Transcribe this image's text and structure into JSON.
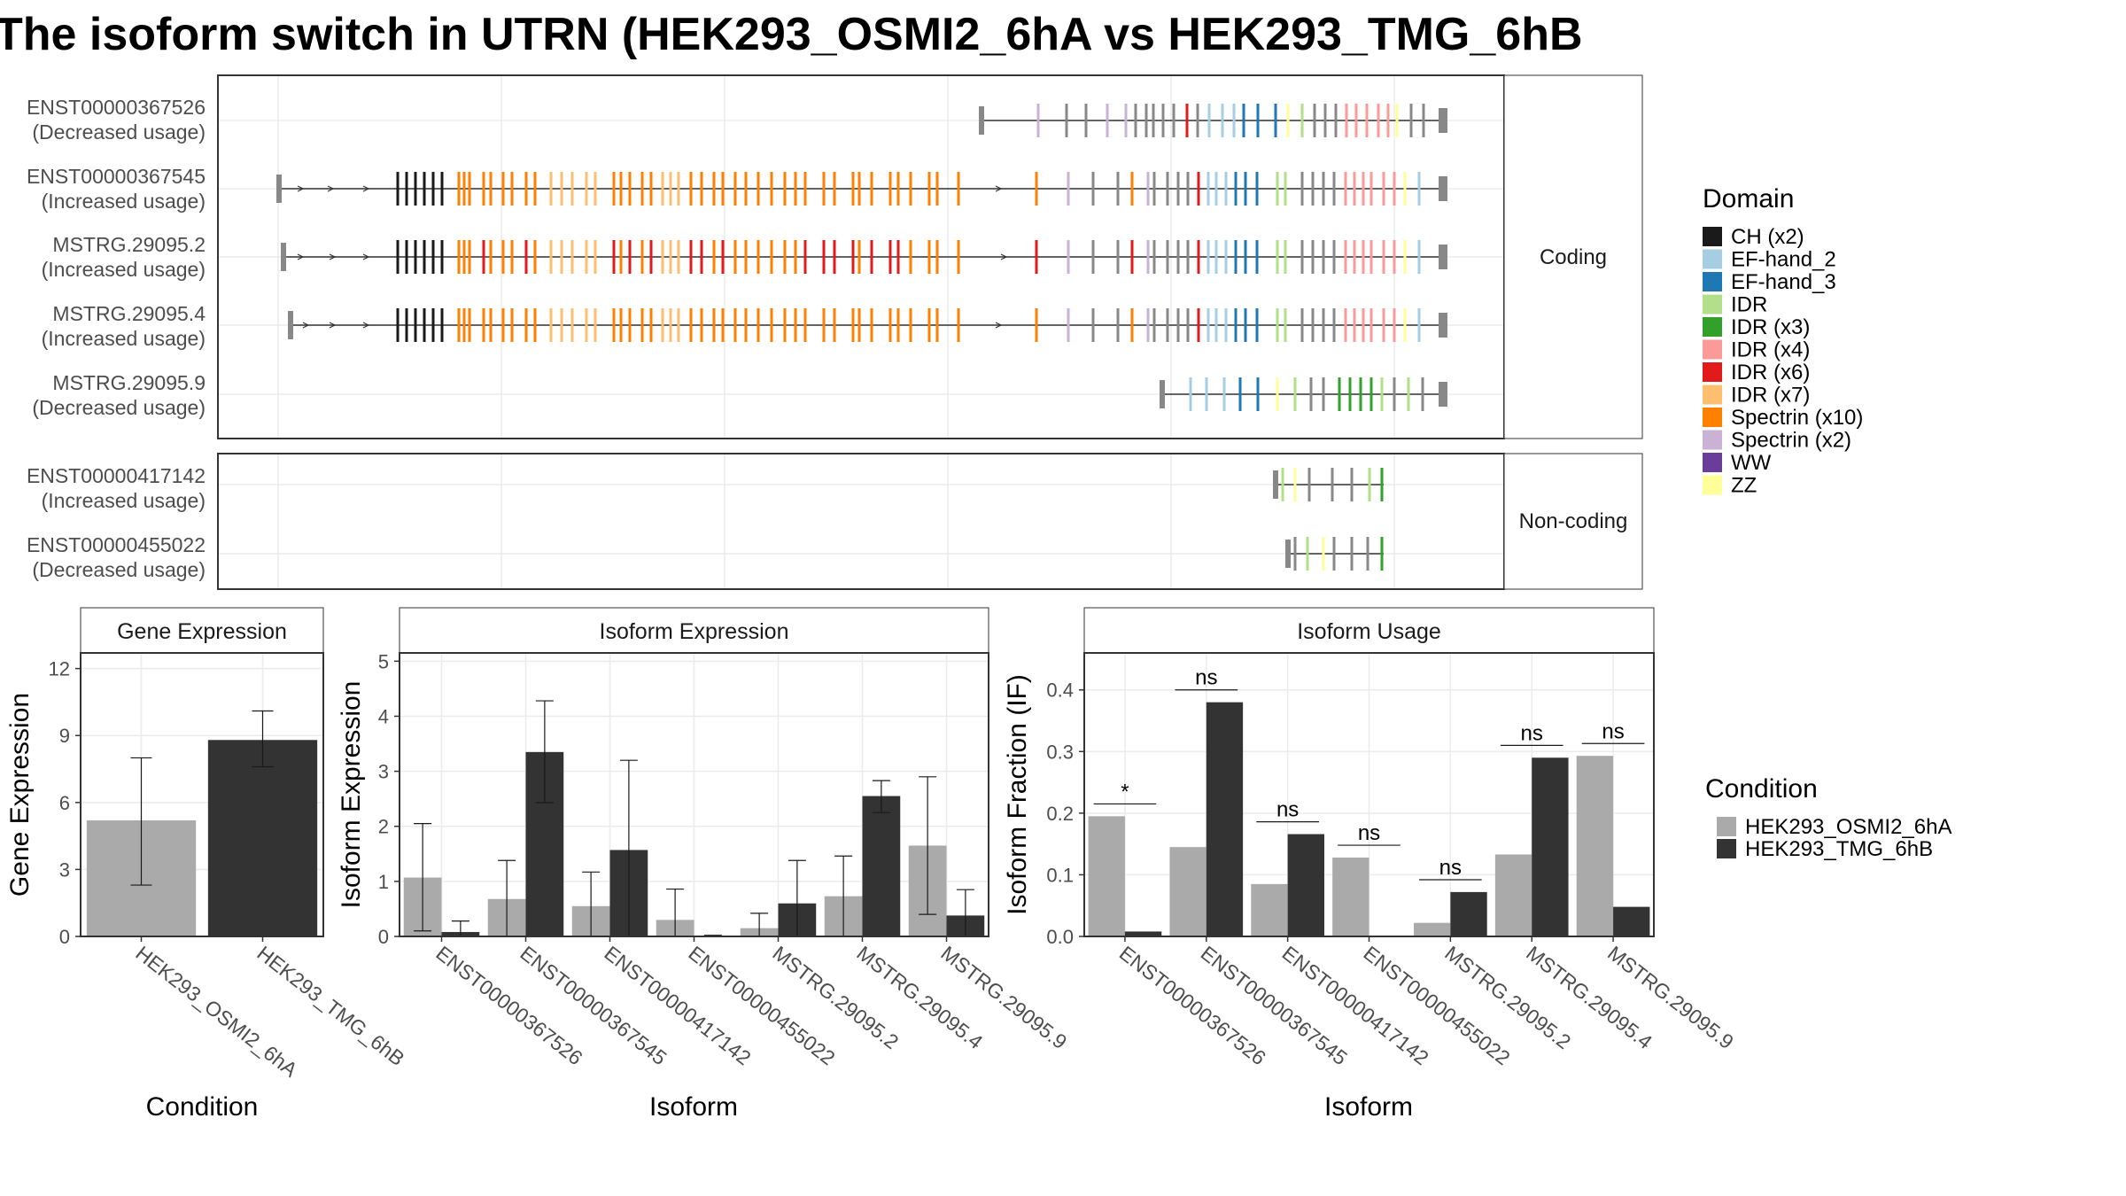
{
  "title": "The isoform switch in UTRN (HEK293_OSMI2_6hA vs HEK293_TMG_6hB",
  "facets": {
    "coding": "Coding",
    "noncoding": "Non-coding"
  },
  "transcripts": [
    {
      "id": "ENST00000367526",
      "note": "(Decreased usage)",
      "group": "coding"
    },
    {
      "id": "ENST00000367545",
      "note": "(Increased usage)",
      "group": "coding"
    },
    {
      "id": "MSTRG.29095.2",
      "note": "(Increased usage)",
      "group": "coding"
    },
    {
      "id": "MSTRG.29095.4",
      "note": "(Increased usage)",
      "group": "coding"
    },
    {
      "id": "MSTRG.29095.9",
      "note": "(Decreased usage)",
      "group": "coding"
    },
    {
      "id": "ENST00000417142",
      "note": "(Increased usage)",
      "group": "noncoding"
    },
    {
      "id": "ENST00000455022",
      "note": "(Decreased usage)",
      "group": "noncoding"
    }
  ],
  "domain_legend": {
    "title": "Domain",
    "items": [
      {
        "label": "CH (x2)",
        "color": "#1a1a1a"
      },
      {
        "label": "EF-hand_2",
        "color": "#a6cee3"
      },
      {
        "label": "EF-hand_3",
        "color": "#1f78b4"
      },
      {
        "label": "IDR",
        "color": "#b2df8a"
      },
      {
        "label": "IDR (x3)",
        "color": "#33a02c"
      },
      {
        "label": "IDR (x4)",
        "color": "#fb9a99"
      },
      {
        "label": "IDR (x6)",
        "color": "#e31a1c"
      },
      {
        "label": "IDR (x7)",
        "color": "#fdbf6f"
      },
      {
        "label": "Spectrin (x10)",
        "color": "#ff7f00"
      },
      {
        "label": "Spectrin (x2)",
        "color": "#cab2d6"
      },
      {
        "label": "WW",
        "color": "#6a3d9a"
      },
      {
        "label": "ZZ",
        "color": "#ffff99"
      }
    ]
  },
  "condition_legend": {
    "title": "Condition",
    "items": [
      {
        "label": "HEK293_OSMI2_6hA",
        "color": "#aaaaaa"
      },
      {
        "label": "HEK293_TMG_6hB",
        "color": "#333333"
      }
    ]
  },
  "chart_data": [
    {
      "type": "bar",
      "title": "Gene Expression",
      "xlabel": "Condition",
      "ylabel": "Gene Expression",
      "categories": [
        "HEK293_OSMI2_6hA",
        "HEK293_TMG_6hB"
      ],
      "values": [
        5.2,
        8.8
      ],
      "error": [
        [
          2.3,
          8.0
        ],
        [
          7.6,
          10.1
        ]
      ],
      "colors": [
        "#aaaaaa",
        "#333333"
      ],
      "ylim": [
        0,
        12.7
      ],
      "yticks": [
        0,
        3,
        6,
        9,
        12
      ]
    },
    {
      "type": "bar",
      "title": "Isoform Expression",
      "xlabel": "Isoform",
      "ylabel": "Isoform Expression",
      "categories": [
        "ENST00000367526",
        "ENST00000367545",
        "ENST00000417142",
        "ENST00000455022",
        "MSTRG.29095.2",
        "MSTRG.29095.4",
        "MSTRG.29095.9"
      ],
      "series": [
        {
          "name": "HEK293_OSMI2_6hA",
          "color": "#aaaaaa",
          "values": [
            1.07,
            0.68,
            0.55,
            0.3,
            0.15,
            0.73,
            1.65
          ],
          "error": [
            [
              0.1,
              2.05
            ],
            [
              0.0,
              1.38
            ],
            [
              0.0,
              1.17
            ],
            [
              0.0,
              0.86
            ],
            [
              0.0,
              0.42
            ],
            [
              0.0,
              1.46
            ],
            [
              0.4,
              2.9
            ]
          ]
        },
        {
          "name": "HEK293_TMG_6hB",
          "color": "#333333",
          "values": [
            0.08,
            3.35,
            1.57,
            0.0,
            0.6,
            2.55,
            0.38
          ],
          "error": [
            [
              0.0,
              0.28
            ],
            [
              2.43,
              4.28
            ],
            [
              0.0,
              3.2
            ],
            [
              0.0,
              0.02
            ],
            [
              0.0,
              1.38
            ],
            [
              2.25,
              2.83
            ],
            [
              0.0,
              0.85
            ]
          ]
        }
      ],
      "ylim": [
        0,
        5.15
      ],
      "yticks": [
        0,
        1,
        2,
        3,
        4,
        5
      ]
    },
    {
      "type": "bar",
      "title": "Isoform Usage",
      "xlabel": "Isoform",
      "ylabel": "Isoform Fraction (IF)",
      "categories": [
        "ENST00000367526",
        "ENST00000367545",
        "ENST00000417142",
        "ENST00000455022",
        "MSTRG.29095.2",
        "MSTRG.29095.4",
        "MSTRG.29095.9"
      ],
      "series": [
        {
          "name": "HEK293_OSMI2_6hA",
          "color": "#aaaaaa",
          "values": [
            0.195,
            0.145,
            0.085,
            0.128,
            0.022,
            0.133,
            0.293
          ]
        },
        {
          "name": "HEK293_TMG_6hB",
          "color": "#333333",
          "values": [
            0.008,
            0.38,
            0.166,
            0.0,
            0.072,
            0.29,
            0.048
          ]
        }
      ],
      "significance": [
        "*",
        "ns",
        "ns",
        "ns",
        "ns",
        "ns",
        "ns"
      ],
      "ylim": [
        0,
        0.46
      ],
      "yticks": [
        0.0,
        0.1,
        0.2,
        0.3,
        0.4
      ],
      "ytick_labels": [
        "0.0",
        "0.1",
        "0.2",
        "0.3",
        "0.4"
      ]
    }
  ]
}
